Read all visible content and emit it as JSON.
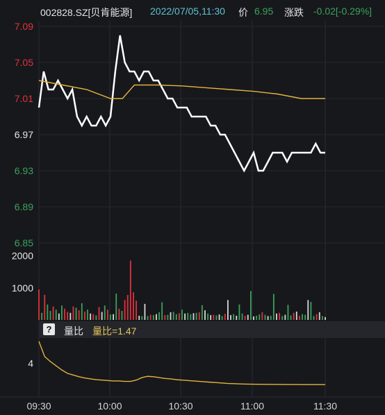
{
  "header": {
    "code": "002828.SZ[贝肯能源]",
    "datetime": "2022/07/05,11:30",
    "price_label": "价",
    "price": "6.95",
    "change_label": "涨跌",
    "change": "-0.02[-0.29%]"
  },
  "indicator_bar": {
    "help_icon": "?",
    "tab_label": "量比",
    "value_label": "量比=",
    "value": "1.47"
  },
  "colors": {
    "background": "#17181c",
    "price_line": "#ffffff",
    "avg_line": "#e6b43c",
    "up": "#e0323c",
    "down": "#3aa35a",
    "flat": "#d8d8d8",
    "ratio_line": "#e6b43c"
  },
  "chart_data": [
    {
      "type": "line",
      "panel": "price",
      "y_ticks": [
        "7.09",
        "7.05",
        "7.01",
        "6.97",
        "6.93",
        "6.89",
        "6.85"
      ],
      "prev_close": 6.97,
      "ylim": [
        6.85,
        7.09
      ],
      "series": [
        {
          "role": "price",
          "x": [
            "09:30",
            "09:32",
            "09:34",
            "09:36",
            "09:38",
            "09:40",
            "09:42",
            "09:44",
            "09:46",
            "09:48",
            "09:50",
            "09:52",
            "09:54",
            "09:56",
            "09:58",
            "10:00",
            "10:02",
            "10:04",
            "10:06",
            "10:08",
            "10:10",
            "10:12",
            "10:14",
            "10:16",
            "10:18",
            "10:20",
            "10:22",
            "10:24",
            "10:26",
            "10:28",
            "10:30",
            "10:32",
            "10:34",
            "10:36",
            "10:38",
            "10:40",
            "10:42",
            "10:44",
            "10:46",
            "10:48",
            "10:50",
            "10:52",
            "10:54",
            "10:56",
            "10:58",
            "11:00",
            "11:02",
            "11:04",
            "11:06",
            "11:08",
            "11:10",
            "11:12",
            "11:14",
            "11:16",
            "11:18",
            "11:20",
            "11:22",
            "11:24",
            "11:26",
            "11:28",
            "11:30"
          ],
          "values": [
            7.0,
            7.04,
            7.02,
            7.02,
            7.03,
            7.02,
            7.01,
            7.02,
            6.99,
            6.98,
            6.99,
            6.98,
            6.98,
            6.99,
            6.98,
            6.99,
            7.04,
            7.08,
            7.05,
            7.04,
            7.04,
            7.03,
            7.04,
            7.04,
            7.03,
            7.03,
            7.02,
            7.01,
            7.01,
            7.0,
            7.0,
            7.0,
            6.99,
            6.99,
            6.99,
            6.99,
            6.98,
            6.98,
            6.97,
            6.97,
            6.96,
            6.95,
            6.94,
            6.93,
            6.94,
            6.95,
            6.93,
            6.93,
            6.94,
            6.95,
            6.95,
            6.95,
            6.94,
            6.95,
            6.95,
            6.95,
            6.95,
            6.95,
            6.96,
            6.95,
            6.95
          ]
        },
        {
          "role": "average",
          "x": [
            "09:30",
            "09:40",
            "09:50",
            "10:00",
            "10:05",
            "10:10",
            "10:20",
            "10:30",
            "10:40",
            "10:50",
            "11:00",
            "11:10",
            "11:20",
            "11:30"
          ],
          "values": [
            7.03,
            7.025,
            7.02,
            7.01,
            7.01,
            7.025,
            7.025,
            7.024,
            7.022,
            7.02,
            7.018,
            7.015,
            7.01,
            7.01
          ]
        }
      ]
    },
    {
      "type": "bar",
      "panel": "volume",
      "y_ticks": [
        "2000",
        "1000"
      ],
      "ylim": [
        0,
        2400
      ],
      "values": [
        950,
        220,
        780,
        480,
        280,
        420,
        320,
        200,
        450,
        350,
        250,
        220,
        420,
        380,
        300,
        520,
        260,
        320,
        200,
        180,
        140,
        400,
        250,
        450,
        320,
        170,
        180,
        820,
        350,
        280,
        620,
        780,
        1850,
        860,
        600,
        130,
        120,
        500,
        120,
        160,
        150,
        180,
        240,
        550,
        150,
        160,
        240,
        250,
        180,
        210,
        320,
        200,
        220,
        180,
        210,
        220,
        240,
        460,
        300,
        200,
        150,
        160,
        140,
        170,
        120,
        190,
        620,
        150,
        180,
        130,
        480,
        200,
        130,
        160,
        900,
        110,
        130,
        170,
        240,
        160,
        120,
        130,
        810,
        200,
        220,
        120,
        160,
        470,
        140,
        220,
        260,
        130,
        180,
        160,
        620,
        560,
        120,
        180,
        240,
        120,
        90
      ],
      "directions": [
        "u",
        "d",
        "u",
        "d",
        "d",
        "u",
        "d",
        "f",
        "d",
        "u",
        "u",
        "f",
        "u",
        "d",
        "u",
        "d",
        "u",
        "d",
        "f",
        "u",
        "d",
        "u",
        "f",
        "d",
        "u",
        "d",
        "f",
        "d",
        "u",
        "d",
        "u",
        "u",
        "u",
        "u",
        "u",
        "f",
        "d",
        "f",
        "d",
        "u",
        "d",
        "f",
        "d",
        "d",
        "u",
        "d",
        "f",
        "d",
        "d",
        "u",
        "d",
        "f",
        "d",
        "d",
        "f",
        "d",
        "u",
        "d",
        "f",
        "d",
        "f",
        "u",
        "d",
        "f",
        "d",
        "u",
        "f",
        "f",
        "d",
        "f",
        "d",
        "d",
        "u",
        "f",
        "d",
        "f",
        "d",
        "d",
        "u",
        "d",
        "f",
        "d",
        "d",
        "f",
        "u",
        "d",
        "f",
        "d",
        "d",
        "u",
        "f",
        "u",
        "d",
        "d",
        "f",
        "d",
        "d",
        "u",
        "f",
        "d",
        "f"
      ]
    },
    {
      "type": "line",
      "panel": "volume_ratio",
      "y_ticks": [
        "4"
      ],
      "ylim": [
        0,
        7
      ],
      "values": [
        6.6,
        4.8,
        4.2,
        3.7,
        3.2,
        2.8,
        2.6,
        2.4,
        2.25,
        2.15,
        2.05,
        2.0,
        1.95,
        1.9,
        1.9,
        1.85,
        1.85,
        2.0,
        2.3,
        2.45,
        2.4,
        2.3,
        2.2,
        2.15,
        2.05,
        2.0,
        1.95,
        1.9,
        1.85,
        1.8,
        1.75,
        1.7,
        1.65,
        1.6,
        1.58,
        1.55,
        1.53,
        1.52,
        1.51,
        1.5,
        1.5,
        1.49,
        1.49,
        1.48,
        1.48,
        1.48,
        1.47,
        1.47,
        1.47,
        1.47,
        1.47
      ]
    }
  ],
  "x_axis": {
    "ticks": [
      "09:30",
      "10:00",
      "10:30",
      "11:00",
      "11:30"
    ]
  }
}
